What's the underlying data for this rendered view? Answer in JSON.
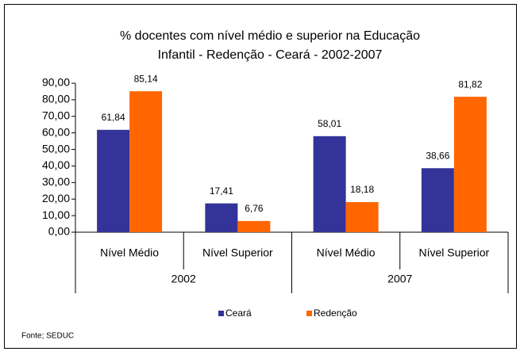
{
  "chart_data": {
    "type": "bar",
    "title": [
      "% docentes com nível médio e superior na  Educação",
      "Infantil - Redenção - Ceará - 2002-2007"
    ],
    "categories": [
      "Nível Médio",
      "Nível Superior",
      "Nível Médio",
      "Nível Superior"
    ],
    "groups": [
      "2002",
      "2007"
    ],
    "series": [
      {
        "name": "Ceará",
        "color": "#333399",
        "values": [
          61.84,
          17.41,
          58.01,
          38.66
        ],
        "value_labels": [
          "61,84",
          "17,41",
          "58,01",
          "38,66"
        ]
      },
      {
        "name": "Redenção",
        "color": "#FF6600",
        "values": [
          85.14,
          6.76,
          18.18,
          81.82
        ],
        "value_labels": [
          "85,14",
          "6,76",
          "18,18",
          "81,82"
        ]
      }
    ],
    "ylim": [
      0,
      90
    ],
    "yticks": [
      {
        "value": 0,
        "label": "0,00"
      },
      {
        "value": 10,
        "label": "10,00"
      },
      {
        "value": 20,
        "label": "20,00"
      },
      {
        "value": 30,
        "label": "30,00"
      },
      {
        "value": 40,
        "label": "40,00"
      },
      {
        "value": 50,
        "label": "50,00"
      },
      {
        "value": 60,
        "label": "60,00"
      },
      {
        "value": 70,
        "label": "70,00"
      },
      {
        "value": 80,
        "label": "80,00"
      },
      {
        "value": 90,
        "label": "90,00"
      }
    ],
    "legend": "bottom",
    "source": "Fonte; SEDUC"
  }
}
